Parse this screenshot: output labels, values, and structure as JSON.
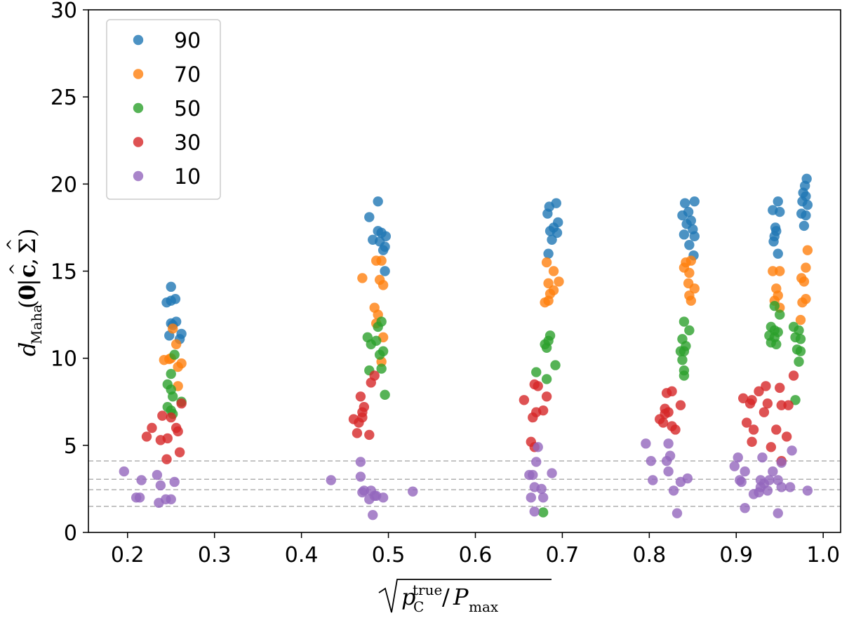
{
  "chart_data": {
    "type": "scatter",
    "title": "",
    "xlabel": "√(p_C^true / P_max)",
    "ylabel": "d_Maha(0|ĉ, Σ̂)",
    "xlim": [
      0.155,
      1.02
    ],
    "ylim": [
      0,
      30
    ],
    "xticks": [
      0.2,
      0.3,
      0.4,
      0.5,
      0.6,
      0.7,
      0.8,
      0.9,
      1.0
    ],
    "xtick_labels": [
      "0.2",
      "0.3",
      "0.4",
      "0.5",
      "0.6",
      "0.7",
      "0.8",
      "0.9",
      "1.0"
    ],
    "yticks": [
      0,
      5,
      10,
      15,
      20,
      25,
      30
    ],
    "ytick_labels": [
      "0",
      "5",
      "10",
      "15",
      "20",
      "25",
      "30"
    ],
    "grid": false,
    "legend_position": "top-left",
    "hlines": [
      1.5,
      2.45,
      3.05,
      4.1
    ],
    "series": [
      {
        "name": "90",
        "color": "#1f77b4",
        "points": [
          [
            0.25,
            14.1
          ],
          [
            0.245,
            13.2
          ],
          [
            0.255,
            13.4
          ],
          [
            0.25,
            13.3
          ],
          [
            0.25,
            12.0
          ],
          [
            0.256,
            12.1
          ],
          [
            0.252,
            11.9
          ],
          [
            0.248,
            11.3
          ],
          [
            0.262,
            11.4
          ],
          [
            0.26,
            11.1
          ],
          [
            0.478,
            18.1
          ],
          [
            0.488,
            19.0
          ],
          [
            0.488,
            17.3
          ],
          [
            0.492,
            17.2
          ],
          [
            0.497,
            17.0
          ],
          [
            0.482,
            16.8
          ],
          [
            0.49,
            16.7
          ],
          [
            0.496,
            16.4
          ],
          [
            0.494,
            16.2
          ],
          [
            0.496,
            15.0
          ],
          [
            0.685,
            18.7
          ],
          [
            0.693,
            18.9
          ],
          [
            0.683,
            18.3
          ],
          [
            0.695,
            17.8
          ],
          [
            0.69,
            17.5
          ],
          [
            0.686,
            17.3
          ],
          [
            0.694,
            17.2
          ],
          [
            0.688,
            16.8
          ],
          [
            0.684,
            16.0
          ],
          [
            0.841,
            18.9
          ],
          [
            0.852,
            19.0
          ],
          [
            0.845,
            18.4
          ],
          [
            0.838,
            18.2
          ],
          [
            0.848,
            17.9
          ],
          [
            0.843,
            17.7
          ],
          [
            0.85,
            17.4
          ],
          [
            0.84,
            17.1
          ],
          [
            0.852,
            17.0
          ],
          [
            0.846,
            16.5
          ],
          [
            0.851,
            15.9
          ],
          [
            0.948,
            19.0
          ],
          [
            0.942,
            18.5
          ],
          [
            0.95,
            18.4
          ],
          [
            0.945,
            17.5
          ],
          [
            0.946,
            17.3
          ],
          [
            0.944,
            17.0
          ],
          [
            0.943,
            16.7
          ],
          [
            0.948,
            16.0
          ],
          [
            0.981,
            20.3
          ],
          [
            0.979,
            19.9
          ],
          [
            0.977,
            19.5
          ],
          [
            0.98,
            19.3
          ],
          [
            0.976,
            19.0
          ],
          [
            0.982,
            18.8
          ],
          [
            0.975,
            18.3
          ],
          [
            0.98,
            18.2
          ],
          [
            0.978,
            17.6
          ]
        ]
      },
      {
        "name": "70",
        "color": "#ff7f0e",
        "points": [
          [
            0.252,
            11.7
          ],
          [
            0.242,
            9.9
          ],
          [
            0.248,
            9.95
          ],
          [
            0.25,
            10.0
          ],
          [
            0.262,
            9.7
          ],
          [
            0.258,
            9.5
          ],
          [
            0.256,
            10.8
          ],
          [
            0.258,
            8.4
          ],
          [
            0.47,
            14.6
          ],
          [
            0.486,
            15.6
          ],
          [
            0.492,
            15.6
          ],
          [
            0.49,
            14.5
          ],
          [
            0.494,
            14.2
          ],
          [
            0.484,
            12.9
          ],
          [
            0.488,
            12.5
          ],
          [
            0.486,
            12.0
          ],
          [
            0.494,
            11.2
          ],
          [
            0.492,
            9.8
          ],
          [
            0.682,
            15.5
          ],
          [
            0.69,
            15.0
          ],
          [
            0.696,
            14.4
          ],
          [
            0.684,
            14.3
          ],
          [
            0.69,
            13.9
          ],
          [
            0.686,
            13.7
          ],
          [
            0.684,
            13.3
          ],
          [
            0.68,
            13.2
          ],
          [
            0.848,
            15.6
          ],
          [
            0.842,
            15.5
          ],
          [
            0.84,
            15.2
          ],
          [
            0.846,
            14.9
          ],
          [
            0.845,
            14.3
          ],
          [
            0.852,
            14.0
          ],
          [
            0.846,
            13.6
          ],
          [
            0.848,
            13.3
          ],
          [
            0.942,
            15.0
          ],
          [
            0.95,
            15.0
          ],
          [
            0.946,
            14.0
          ],
          [
            0.948,
            13.6
          ],
          [
            0.944,
            13.3
          ],
          [
            0.95,
            12.9
          ],
          [
            0.982,
            16.2
          ],
          [
            0.98,
            15.2
          ],
          [
            0.975,
            14.6
          ],
          [
            0.978,
            14.4
          ],
          [
            0.98,
            13.4
          ],
          [
            0.976,
            13.2
          ],
          [
            0.974,
            12.2
          ]
        ]
      },
      {
        "name": "50",
        "color": "#2ca02c",
        "points": [
          [
            0.254,
            10.2
          ],
          [
            0.25,
            9.1
          ],
          [
            0.246,
            8.5
          ],
          [
            0.25,
            8.2
          ],
          [
            0.252,
            7.8
          ],
          [
            0.246,
            7.2
          ],
          [
            0.25,
            7.0
          ],
          [
            0.252,
            6.8
          ],
          [
            0.262,
            7.5
          ],
          [
            0.492,
            12.1
          ],
          [
            0.488,
            11.8
          ],
          [
            0.476,
            11.2
          ],
          [
            0.486,
            11.0
          ],
          [
            0.48,
            10.8
          ],
          [
            0.494,
            10.4
          ],
          [
            0.49,
            10.2
          ],
          [
            0.478,
            9.3
          ],
          [
            0.492,
            9.4
          ],
          [
            0.496,
            7.9
          ],
          [
            0.686,
            11.3
          ],
          [
            0.684,
            11.0
          ],
          [
            0.68,
            10.8
          ],
          [
            0.682,
            10.6
          ],
          [
            0.692,
            9.6
          ],
          [
            0.67,
            9.2
          ],
          [
            0.682,
            8.8
          ],
          [
            0.678,
            1.15
          ],
          [
            0.84,
            12.1
          ],
          [
            0.846,
            11.6
          ],
          [
            0.838,
            11.1
          ],
          [
            0.842,
            10.7
          ],
          [
            0.84,
            10.4
          ],
          [
            0.836,
            10.4
          ],
          [
            0.838,
            9.9
          ],
          [
            0.84,
            9.3
          ],
          [
            0.84,
            9.0
          ],
          [
            0.944,
            13.0
          ],
          [
            0.95,
            12.5
          ],
          [
            0.94,
            11.8
          ],
          [
            0.944,
            11.6
          ],
          [
            0.948,
            11.5
          ],
          [
            0.938,
            11.3
          ],
          [
            0.944,
            11.2
          ],
          [
            0.94,
            10.9
          ],
          [
            0.946,
            10.8
          ],
          [
            0.966,
            11.8
          ],
          [
            0.972,
            11.6
          ],
          [
            0.968,
            11.2
          ],
          [
            0.974,
            11.1
          ],
          [
            0.97,
            10.5
          ],
          [
            0.974,
            10.4
          ],
          [
            0.972,
            9.8
          ],
          [
            0.968,
            7.6
          ]
        ]
      },
      {
        "name": "30",
        "color": "#d62728",
        "points": [
          [
            0.228,
            6.0
          ],
          [
            0.222,
            5.5
          ],
          [
            0.24,
            6.7
          ],
          [
            0.25,
            6.6
          ],
          [
            0.256,
            6.0
          ],
          [
            0.258,
            5.8
          ],
          [
            0.246,
            5.4
          ],
          [
            0.238,
            5.3
          ],
          [
            0.26,
            4.6
          ],
          [
            0.245,
            4.2
          ],
          [
            0.262,
            7.4
          ],
          [
            0.484,
            9.0
          ],
          [
            0.48,
            8.6
          ],
          [
            0.468,
            7.8
          ],
          [
            0.472,
            7.2
          ],
          [
            0.47,
            6.9
          ],
          [
            0.46,
            6.5
          ],
          [
            0.47,
            6.6
          ],
          [
            0.466,
            6.3
          ],
          [
            0.464,
            5.7
          ],
          [
            0.478,
            5.6
          ],
          [
            0.668,
            8.5
          ],
          [
            0.672,
            8.4
          ],
          [
            0.682,
            7.8
          ],
          [
            0.656,
            7.6
          ],
          [
            0.678,
            7.0
          ],
          [
            0.67,
            6.9
          ],
          [
            0.666,
            6.6
          ],
          [
            0.664,
            5.2
          ],
          [
            0.668,
            4.9
          ],
          [
            0.826,
            8.1
          ],
          [
            0.82,
            8.0
          ],
          [
            0.818,
            7.1
          ],
          [
            0.822,
            6.9
          ],
          [
            0.836,
            7.3
          ],
          [
            0.812,
            6.5
          ],
          [
            0.816,
            6.3
          ],
          [
            0.826,
            6.1
          ],
          [
            0.83,
            5.9
          ],
          [
            0.818,
            6.8
          ],
          [
            0.908,
            7.7
          ],
          [
            0.918,
            7.6
          ],
          [
            0.926,
            8.1
          ],
          [
            0.934,
            8.4
          ],
          [
            0.916,
            7.4
          ],
          [
            0.912,
            6.3
          ],
          [
            0.92,
            5.9
          ],
          [
            0.936,
            7.4
          ],
          [
            0.932,
            6.9
          ],
          [
            0.94,
            4.9
          ],
          [
            0.946,
            5.9
          ],
          [
            0.95,
            8.3
          ],
          [
            0.952,
            7.3
          ],
          [
            0.96,
            7.3
          ],
          [
            0.958,
            5.5
          ],
          [
            0.952,
            4.1
          ],
          [
            0.966,
            9.0
          ],
          [
            0.918,
            5.2
          ]
        ]
      },
      {
        "name": "10",
        "color": "#9467bd",
        "points": [
          [
            0.196,
            3.5
          ],
          [
            0.21,
            2.0
          ],
          [
            0.214,
            2.0
          ],
          [
            0.216,
            3.0
          ],
          [
            0.234,
            3.3
          ],
          [
            0.238,
            2.7
          ],
          [
            0.244,
            1.9
          ],
          [
            0.25,
            1.9
          ],
          [
            0.254,
            2.9
          ],
          [
            0.236,
            1.7
          ],
          [
            0.434,
            3.0
          ],
          [
            0.468,
            4.05
          ],
          [
            0.468,
            3.2
          ],
          [
            0.472,
            2.4
          ],
          [
            0.47,
            2.3
          ],
          [
            0.48,
            2.4
          ],
          [
            0.484,
            2.1
          ],
          [
            0.486,
            2.1
          ],
          [
            0.494,
            2.0
          ],
          [
            0.478,
            1.9
          ],
          [
            0.482,
            1.0
          ],
          [
            0.528,
            2.35
          ],
          [
            0.662,
            3.3
          ],
          [
            0.666,
            3.3
          ],
          [
            0.668,
            2.6
          ],
          [
            0.676,
            2.5
          ],
          [
            0.664,
            2.0
          ],
          [
            0.678,
            2.0
          ],
          [
            0.668,
            1.2
          ],
          [
            0.688,
            3.4
          ],
          [
            0.67,
            4.05
          ],
          [
            0.672,
            4.9
          ],
          [
            0.796,
            5.1
          ],
          [
            0.802,
            4.1
          ],
          [
            0.804,
            3.0
          ],
          [
            0.82,
            4.1
          ],
          [
            0.822,
            5.1
          ],
          [
            0.824,
            4.4
          ],
          [
            0.822,
            3.5
          ],
          [
            0.828,
            2.4
          ],
          [
            0.836,
            2.9
          ],
          [
            0.844,
            3.1
          ],
          [
            0.832,
            1.1
          ],
          [
            0.898,
            3.8
          ],
          [
            0.902,
            4.3
          ],
          [
            0.904,
            3.0
          ],
          [
            0.906,
            2.9
          ],
          [
            0.91,
            3.5
          ],
          [
            0.91,
            1.4
          ],
          [
            0.92,
            2.2
          ],
          [
            0.926,
            2.3
          ],
          [
            0.928,
            2.6
          ],
          [
            0.928,
            3.0
          ],
          [
            0.93,
            4.3
          ],
          [
            0.932,
            2.8
          ],
          [
            0.936,
            2.4
          ],
          [
            0.938,
            3.0
          ],
          [
            0.942,
            3.5
          ],
          [
            0.948,
            3.0
          ],
          [
            0.948,
            1.1
          ],
          [
            0.952,
            4.0
          ],
          [
            0.952,
            2.6
          ],
          [
            0.962,
            2.6
          ],
          [
            0.964,
            4.7
          ],
          [
            0.982,
            2.4
          ]
        ]
      }
    ]
  }
}
